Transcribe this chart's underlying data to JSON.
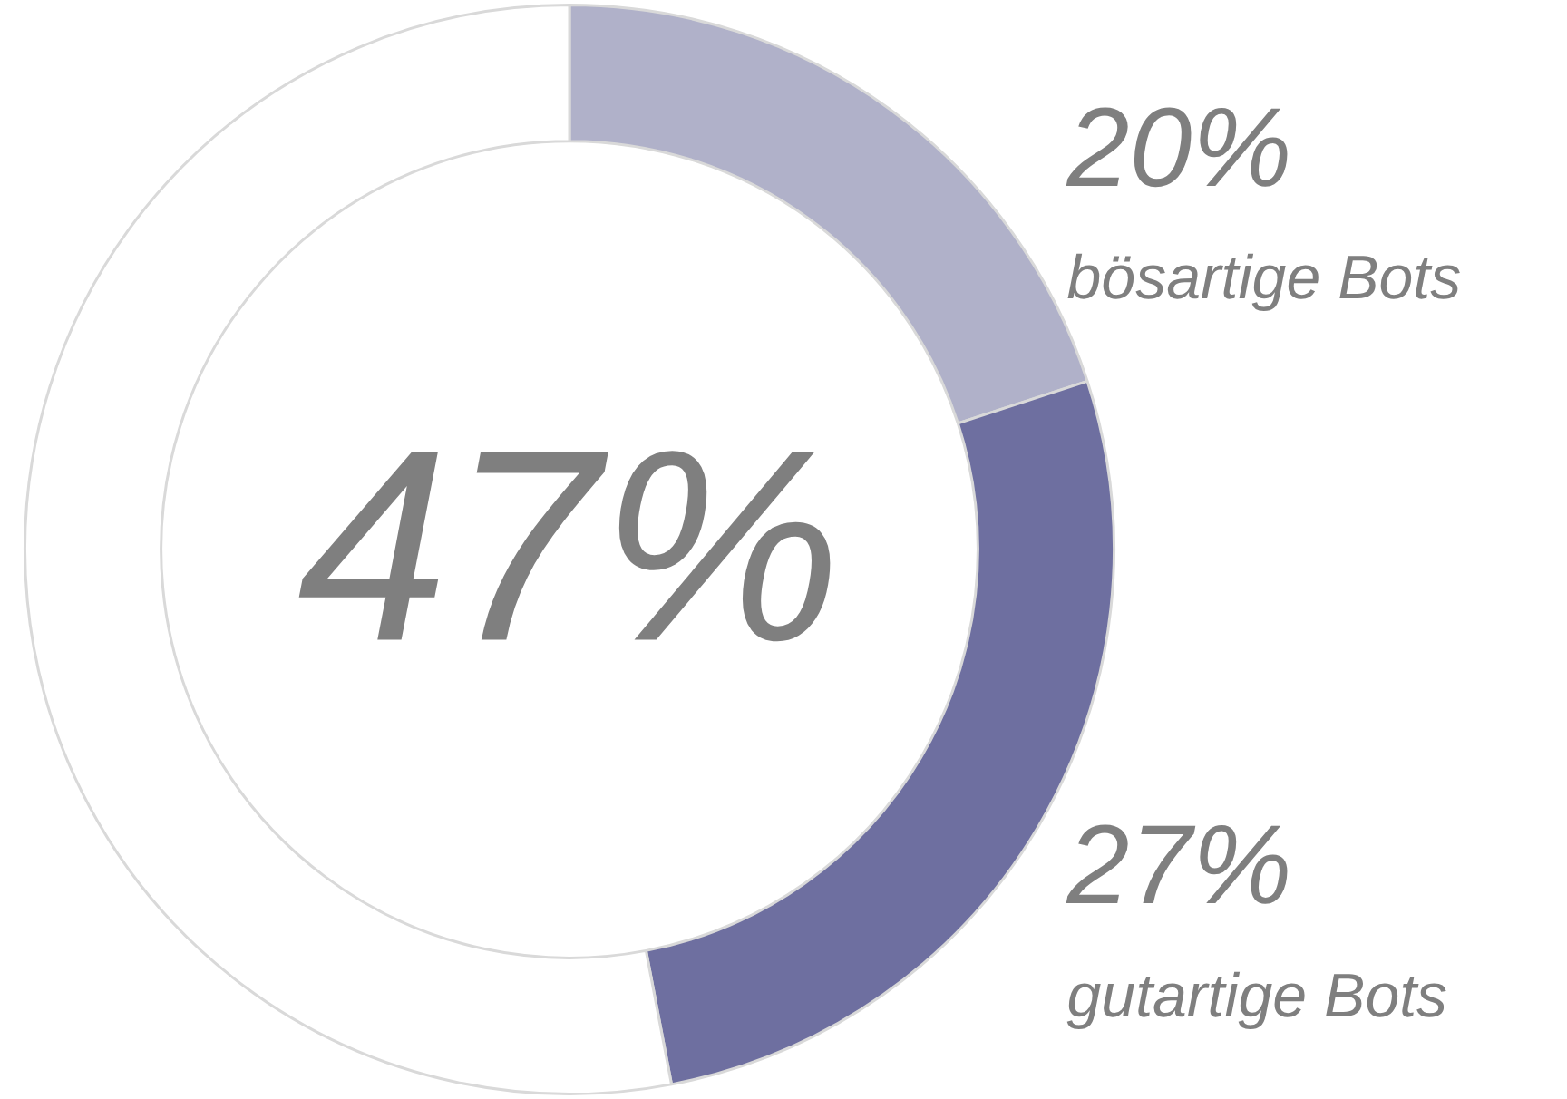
{
  "chart_data": {
    "type": "donut",
    "categories": [
      "bösartige Bots",
      "gutartige Bots",
      null
    ],
    "values": [
      20,
      27,
      53
    ],
    "colors": [
      "#b0b1c9",
      "#6e6fa0",
      "#ffffff"
    ],
    "value_labels": [
      "20%",
      "27%",
      null
    ],
    "annotations": [
      "47%"
    ],
    "legend": false
  }
}
